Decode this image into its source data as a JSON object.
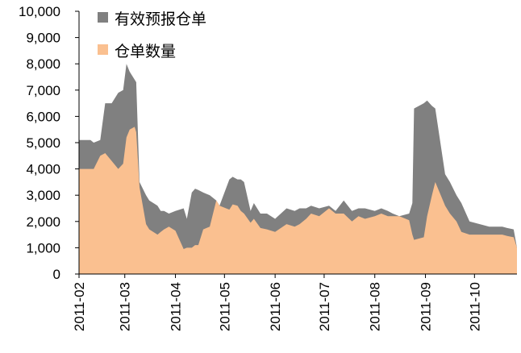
{
  "chart_data": {
    "type": "area",
    "title": "",
    "xlabel": "",
    "ylabel": "",
    "ylim": [
      0,
      10000
    ],
    "yticks": [
      "0",
      "1,000",
      "2,000",
      "3,000",
      "4,000",
      "5,000",
      "6,000",
      "7,000",
      "8,000",
      "9,000",
      "10,000"
    ],
    "x_tick_labels": [
      "2011-02",
      "2011-03",
      "2011-04",
      "2011-05",
      "2011-06",
      "2011-07",
      "2011-08",
      "2011-09",
      "2011-10"
    ],
    "legend_position": "top-left",
    "grid": false,
    "x": [
      "2011-02-01",
      "2011-02-08",
      "2011-02-10",
      "2011-02-14",
      "2011-02-17",
      "2011-02-21",
      "2011-02-25",
      "2011-02-28",
      "2011-03-02",
      "2011-03-04",
      "2011-03-07",
      "2011-03-08",
      "2011-03-10",
      "2011-03-14",
      "2011-03-16",
      "2011-03-21",
      "2011-03-23",
      "2011-03-25",
      "2011-03-28",
      "2011-04-01",
      "2011-04-06",
      "2011-04-08",
      "2011-04-11",
      "2011-04-13",
      "2011-04-15",
      "2011-04-18",
      "2011-04-22",
      "2011-04-26",
      "2011-04-28",
      "2011-05-04",
      "2011-05-06",
      "2011-05-09",
      "2011-05-11",
      "2011-05-13",
      "2011-05-17",
      "2011-05-19",
      "2011-05-23",
      "2011-05-27",
      "2011-06-01",
      "2011-06-08",
      "2011-06-13",
      "2011-06-16",
      "2011-06-20",
      "2011-06-23",
      "2011-06-28",
      "2011-07-04",
      "2011-07-08",
      "2011-07-13",
      "2011-07-18",
      "2011-07-22",
      "2011-07-26",
      "2011-08-01",
      "2011-08-05",
      "2011-08-09",
      "2011-08-12",
      "2011-08-16",
      "2011-08-22",
      "2011-08-24",
      "2011-08-25",
      "2011-08-31",
      "2011-09-02",
      "2011-09-05",
      "2011-09-07",
      "2011-09-13",
      "2011-09-16",
      "2011-09-20",
      "2011-09-23",
      "2011-09-28",
      "2011-10-10",
      "2011-10-18",
      "2011-10-21",
      "2011-10-25",
      "2011-10-27"
    ],
    "series": [
      {
        "name": "有效预报仓单",
        "color": "#808080",
        "values": [
          5100,
          5100,
          5000,
          5100,
          6500,
          6500,
          6900,
          7000,
          8000,
          7700,
          7400,
          7300,
          3500,
          3000,
          2800,
          2600,
          2400,
          2400,
          2300,
          2400,
          2500,
          2100,
          3100,
          3250,
          3200,
          3100,
          3000,
          2800,
          2600,
          3600,
          3700,
          3600,
          3600,
          3500,
          2400,
          2700,
          2300,
          2300,
          2100,
          2500,
          2400,
          2500,
          2500,
          2600,
          2500,
          2600,
          2400,
          2800,
          2400,
          2500,
          2500,
          2400,
          2500,
          2400,
          2300,
          2200,
          2300,
          2700,
          6300,
          6500,
          6600,
          6400,
          6300,
          3800,
          3500,
          3000,
          2700,
          2000,
          1800,
          1800,
          1750,
          1700,
          1000
        ],
        "role": "top"
      },
      {
        "name": "仓单数量",
        "color": "#FAC090",
        "values": [
          4000,
          4000,
          4000,
          4500,
          4600,
          4300,
          4000,
          4200,
          5200,
          5500,
          5600,
          5400,
          3300,
          1900,
          1700,
          1500,
          1600,
          1700,
          1800,
          1650,
          950,
          1000,
          1000,
          1100,
          1100,
          1700,
          1800,
          2800,
          2600,
          2450,
          2650,
          2600,
          2400,
          2300,
          1950,
          2100,
          1750,
          1700,
          1600,
          1900,
          1800,
          1900,
          2100,
          2300,
          2200,
          2500,
          2300,
          2300,
          2000,
          2200,
          2100,
          2200,
          2300,
          2200,
          2200,
          2200,
          2050,
          1500,
          1300,
          1400,
          2200,
          3000,
          3500,
          2600,
          2300,
          2000,
          1600,
          1500,
          1500,
          1500,
          1450,
          1400,
          1000
        ],
        "role": "bottom"
      }
    ]
  }
}
